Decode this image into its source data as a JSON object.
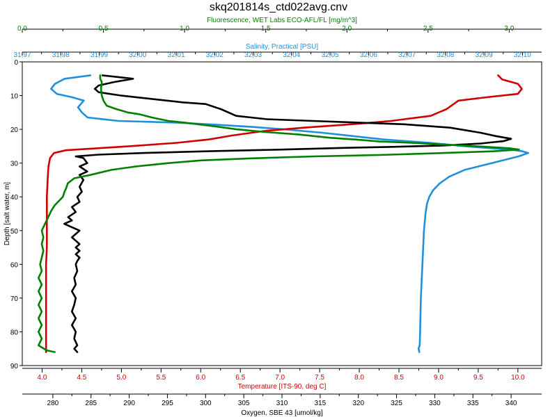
{
  "chart_data": {
    "type": "line",
    "title": "skq201814s_ctd022avg.cnv",
    "y_axis": {
      "label": "Depth [salt water, m]",
      "range": [
        0,
        90
      ],
      "inverted": true,
      "ticks": [
        0,
        10,
        20,
        30,
        40,
        50,
        60,
        70,
        80,
        90
      ]
    },
    "x_axes": [
      {
        "key": "fluorescence",
        "label": "Fluorescence, WET Labs ECO-AFL/FL [mg/m^3]",
        "position": "top-outer",
        "color": "#008000",
        "range": [
          0,
          3.2
        ],
        "ticks": [
          0,
          0.5,
          1,
          1.5,
          2,
          2.5,
          3
        ],
        "tick_labels": [
          "0.0",
          "0.5",
          "1.0",
          "1.5",
          "2.0",
          "2.5",
          "3.0"
        ]
      },
      {
        "key": "salinity",
        "label": "Salinity, Practical [PSU]",
        "position": "top-inner",
        "color": "#1E90DC",
        "range": [
          31.97,
          32.105
        ],
        "ticks": [
          31.97,
          31.98,
          31.99,
          32.0,
          32.01,
          32.02,
          32.03,
          32.04,
          32.05,
          32.06,
          32.07,
          32.08,
          32.09,
          32.1
        ],
        "tick_labels": [
          "31,97",
          "31,98",
          "31,99",
          "32,00",
          "32,01",
          "32,02",
          "32,03",
          "32,04",
          "32,05",
          "32,06",
          "32,07",
          "32,08",
          "32,09",
          "32,10"
        ]
      },
      {
        "key": "temperature",
        "label": "Temperature [ITS-90, deg C]",
        "position": "bottom-inner",
        "color": "#D00000",
        "range": [
          3.75,
          10.3
        ],
        "ticks": [
          4.0,
          4.5,
          5.0,
          5.5,
          6.0,
          6.5,
          7.0,
          7.5,
          8.0,
          8.5,
          9.0,
          9.5,
          10.0
        ],
        "tick_labels": [
          "4.0",
          "4.5",
          "5.0",
          "5.5",
          "6.0",
          "6.5",
          "7.0",
          "7.5",
          "8.0",
          "8.5",
          "9.0",
          "9.5",
          "10.0"
        ]
      },
      {
        "key": "oxygen",
        "label": "Oxygen, SBE 43 [umol/kg]",
        "position": "bottom-outer",
        "color": "#000000",
        "range": [
          276,
          344
        ],
        "ticks": [
          280,
          285,
          290,
          295,
          300,
          305,
          310,
          315,
          320,
          325,
          330,
          335,
          340
        ],
        "tick_labels": [
          "280",
          "285",
          "290",
          "295",
          "300",
          "305",
          "310",
          "315",
          "320",
          "325",
          "330",
          "335",
          "340"
        ]
      }
    ],
    "series": [
      {
        "axis": "salinity",
        "color": "#1E90DC",
        "points": [
          [
            31.9877,
            4
          ],
          [
            31.981,
            5
          ],
          [
            31.9785,
            6.5
          ],
          [
            31.9775,
            8
          ],
          [
            31.979,
            9.5
          ],
          [
            31.983,
            10.5
          ],
          [
            31.986,
            11.5
          ],
          [
            31.9852,
            12.5
          ],
          [
            31.9845,
            13.5
          ],
          [
            31.9855,
            15
          ],
          [
            31.987,
            16.5
          ],
          [
            31.995,
            17.5
          ],
          [
            32.01,
            18
          ],
          [
            32.02,
            18.6
          ],
          [
            32.03,
            19.3
          ],
          [
            32.038,
            20
          ],
          [
            32.048,
            21
          ],
          [
            32.056,
            22
          ],
          [
            32.064,
            23
          ],
          [
            32.076,
            24
          ],
          [
            32.085,
            25
          ],
          [
            32.092,
            25.6
          ],
          [
            32.097,
            26
          ],
          [
            32.1,
            26.5
          ],
          [
            32.1015,
            27
          ],
          [
            32.099,
            28
          ],
          [
            32.092,
            30
          ],
          [
            32.085,
            32
          ],
          [
            32.081,
            34
          ],
          [
            32.0785,
            36
          ],
          [
            32.0768,
            38
          ],
          [
            32.0758,
            40
          ],
          [
            32.0752,
            42
          ],
          [
            32.0748,
            45
          ],
          [
            32.0744,
            50
          ],
          [
            32.0742,
            55
          ],
          [
            32.074,
            60
          ],
          [
            32.0738,
            65
          ],
          [
            32.0736,
            70
          ],
          [
            32.0735,
            75
          ],
          [
            32.0734,
            80
          ],
          [
            32.0733,
            84
          ],
          [
            32.073,
            85
          ],
          [
            32.0732,
            86
          ]
        ]
      },
      {
        "axis": "temperature",
        "color": "#D00000",
        "points": [
          [
            9.75,
            4
          ],
          [
            9.8,
            5.2
          ],
          [
            10.0,
            6.5
          ],
          [
            10.05,
            8
          ],
          [
            10.0,
            9.5
          ],
          [
            9.6,
            10.5
          ],
          [
            9.25,
            11.5
          ],
          [
            9.1,
            14
          ],
          [
            8.9,
            16
          ],
          [
            8.4,
            17.5
          ],
          [
            7.9,
            18.5
          ],
          [
            7.3,
            19.5
          ],
          [
            6.8,
            20.5
          ],
          [
            6.4,
            21.8
          ],
          [
            6.1,
            23
          ],
          [
            5.7,
            24
          ],
          [
            5.1,
            25
          ],
          [
            4.7,
            25.6
          ],
          [
            4.3,
            26.2
          ],
          [
            4.15,
            27
          ],
          [
            4.1,
            28.5
          ],
          [
            4.08,
            31
          ],
          [
            4.07,
            35
          ],
          [
            4.06,
            40
          ],
          [
            4.06,
            45
          ],
          [
            4.06,
            50
          ],
          [
            4.06,
            55
          ],
          [
            4.05,
            60
          ],
          [
            4.05,
            65
          ],
          [
            4.05,
            70
          ],
          [
            4.05,
            75
          ],
          [
            4.05,
            80
          ],
          [
            4.05,
            84
          ],
          [
            4.05,
            86
          ]
        ]
      },
      {
        "axis": "oxygen",
        "color": "#000000",
        "points": [
          [
            286.5,
            4
          ],
          [
            288.5,
            4.5
          ],
          [
            290.5,
            5
          ],
          [
            288,
            6
          ],
          [
            286,
            7
          ],
          [
            285.5,
            8
          ],
          [
            286,
            9
          ],
          [
            289,
            10
          ],
          [
            293,
            11
          ],
          [
            297,
            12
          ],
          [
            300,
            12.5
          ],
          [
            302,
            14
          ],
          [
            304,
            16
          ],
          [
            308,
            17
          ],
          [
            314,
            17.5
          ],
          [
            320,
            18
          ],
          [
            326,
            18.5
          ],
          [
            332,
            19.5
          ],
          [
            336,
            21
          ],
          [
            338,
            22
          ],
          [
            340,
            22.8
          ],
          [
            339,
            23.5
          ],
          [
            336,
            24.2
          ],
          [
            331,
            24.8
          ],
          [
            324,
            25.2
          ],
          [
            318,
            25.5
          ],
          [
            310,
            26
          ],
          [
            300,
            26.5
          ],
          [
            292,
            27
          ],
          [
            286,
            27.5
          ],
          [
            283,
            28
          ],
          [
            284,
            28.5
          ],
          [
            284.5,
            30
          ],
          [
            283.5,
            31
          ],
          [
            284.5,
            32.5
          ],
          [
            283.5,
            33.5
          ],
          [
            284,
            35
          ],
          [
            283.5,
            37
          ],
          [
            283.8,
            38.5
          ],
          [
            283.2,
            40
          ],
          [
            283.5,
            41.5
          ],
          [
            282.5,
            43
          ],
          [
            283,
            44.5
          ],
          [
            282,
            46
          ],
          [
            282.5,
            47
          ],
          [
            281.5,
            48
          ],
          [
            282.5,
            49
          ],
          [
            283.5,
            50
          ],
          [
            283,
            51
          ],
          [
            282.5,
            52
          ],
          [
            283,
            53
          ],
          [
            283.5,
            54
          ],
          [
            283,
            55
          ],
          [
            283.5,
            56
          ],
          [
            283,
            57
          ],
          [
            283.5,
            58
          ],
          [
            283.2,
            59
          ],
          [
            283,
            60
          ],
          [
            283.2,
            62
          ],
          [
            282.8,
            64
          ],
          [
            283,
            66
          ],
          [
            282.5,
            68
          ],
          [
            283,
            70
          ],
          [
            282.8,
            72
          ],
          [
            282.5,
            74
          ],
          [
            283,
            76
          ],
          [
            282.5,
            78
          ],
          [
            283,
            80
          ],
          [
            282.8,
            82
          ],
          [
            283.2,
            84
          ],
          [
            282.8,
            85
          ],
          [
            283.2,
            86
          ]
        ]
      },
      {
        "axis": "fluorescence",
        "color": "#008000",
        "points": [
          [
            0.48,
            4
          ],
          [
            0.48,
            5
          ],
          [
            0.49,
            6
          ],
          [
            0.485,
            8
          ],
          [
            0.49,
            10
          ],
          [
            0.5,
            11.5
          ],
          [
            0.52,
            13
          ],
          [
            0.58,
            14
          ],
          [
            0.65,
            15
          ],
          [
            0.72,
            15.5
          ],
          [
            0.8,
            16.5
          ],
          [
            0.9,
            17.5
          ],
          [
            1.0,
            18
          ],
          [
            1.1,
            18.6
          ],
          [
            1.2,
            19.2
          ],
          [
            1.32,
            20
          ],
          [
            1.5,
            20.8
          ],
          [
            1.7,
            21.5
          ],
          [
            1.9,
            22.5
          ],
          [
            2.05,
            23
          ],
          [
            2.2,
            23.6
          ],
          [
            2.4,
            24
          ],
          [
            2.6,
            24.5
          ],
          [
            2.8,
            25
          ],
          [
            3.0,
            25.6
          ],
          [
            3.06,
            26
          ],
          [
            2.9,
            26.5
          ],
          [
            2.6,
            27
          ],
          [
            2.2,
            27.6
          ],
          [
            1.8,
            28
          ],
          [
            1.4,
            28.6
          ],
          [
            1.1,
            29.2
          ],
          [
            0.9,
            30
          ],
          [
            0.7,
            31
          ],
          [
            0.55,
            32
          ],
          [
            0.42,
            33.5
          ],
          [
            0.32,
            34.5
          ],
          [
            0.28,
            36
          ],
          [
            0.27,
            37.5
          ],
          [
            0.26,
            38.5
          ],
          [
            0.25,
            40
          ],
          [
            0.23,
            41
          ],
          [
            0.2,
            42.5
          ],
          [
            0.18,
            44
          ],
          [
            0.16,
            46
          ],
          [
            0.14,
            48
          ],
          [
            0.12,
            50
          ],
          [
            0.13,
            52
          ],
          [
            0.12,
            54
          ],
          [
            0.13,
            56
          ],
          [
            0.12,
            58
          ],
          [
            0.11,
            60
          ],
          [
            0.12,
            62
          ],
          [
            0.1,
            64
          ],
          [
            0.12,
            66
          ],
          [
            0.1,
            68
          ],
          [
            0.12,
            70
          ],
          [
            0.1,
            72
          ],
          [
            0.12,
            74
          ],
          [
            0.1,
            76
          ],
          [
            0.12,
            78
          ],
          [
            0.1,
            80
          ],
          [
            0.12,
            82
          ],
          [
            0.1,
            84
          ],
          [
            0.15,
            85.5
          ],
          [
            0.2,
            86
          ]
        ]
      }
    ]
  }
}
